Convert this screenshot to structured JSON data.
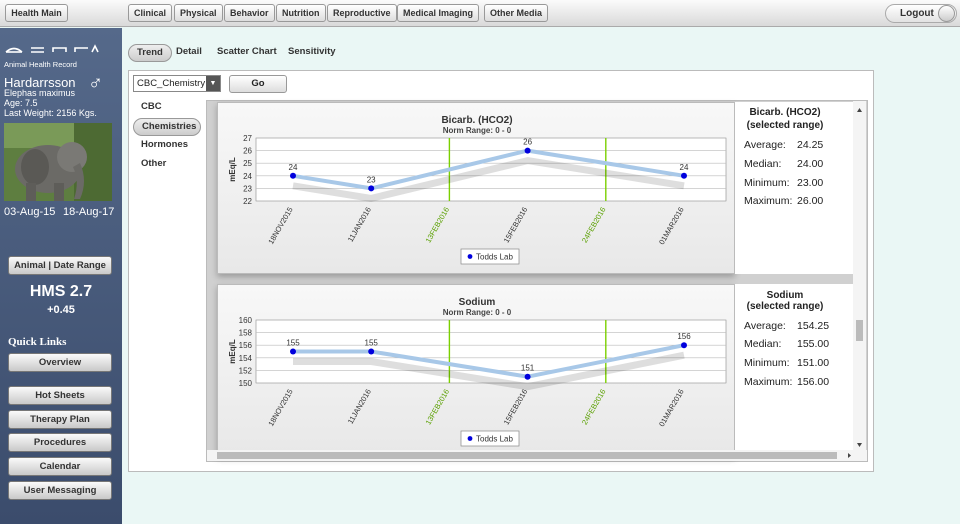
{
  "topnav": {
    "home": "Health Main",
    "items": [
      "Clinical",
      "Physical",
      "Behavior",
      "Nutrition",
      "Reproductive",
      "Medical Imaging",
      "Other Media"
    ],
    "logout": "Logout"
  },
  "sidebar": {
    "logo_sub": "Animal Health Record",
    "animal_name": "Hardarrsson",
    "sex_symbol": "♂",
    "species": "Elephas maximus",
    "age": "Age: 7.5",
    "weight": "Last Weight: 2156 Kgs.",
    "date_start": "03-Aug-15",
    "date_end": "18-Aug-17",
    "animal_date_btn": "Animal | Date Range",
    "hms": "HMS 2.7",
    "hms_delta": "+0.45",
    "quick_links": "Quick Links",
    "overview": "Overview",
    "buttons": [
      "Hot Sheets",
      "Therapy Plan",
      "Procedures",
      "Calendar",
      "User Messaging"
    ]
  },
  "tabs": [
    "Trend",
    "Detail",
    "Scatter Chart",
    "Sensitivity"
  ],
  "panel_select": "CBC_Chemistry",
  "go": "Go",
  "categories": [
    "CBC",
    "Chemistries",
    "Hormones",
    "Other"
  ],
  "colors": {
    "series": "#0000dd",
    "trend": "#a8c8e8",
    "marker": "#7bd000"
  },
  "charts": [
    {
      "title": "Bicarb. (HCO2)",
      "norm": "Norm Range: 0 - 0",
      "ylabel": "mEq/L",
      "legend": "Todds Lab",
      "stats_title1": "Bicarb. (HCO2)",
      "stats_title2": "(selected range)",
      "avg_label": "Average:",
      "avg": "24.25",
      "med_label": "Median:",
      "med": "24.00",
      "min_label": "Minimum:",
      "min": "23.00",
      "max_label": "Maximum:",
      "max": "26.00",
      "chart_data": {
        "type": "line",
        "ylim": [
          22,
          27
        ],
        "yticks": [
          27,
          26,
          25,
          24,
          23,
          22
        ],
        "x": [
          "18NOV2015",
          "11JAN2016",
          "13FEB2016",
          "15FEB2016",
          "24FEB2016",
          "01MAR2016"
        ],
        "highlight": [
          "13FEB2016",
          "24FEB2016"
        ],
        "series": [
          {
            "name": "Todds Lab",
            "points": [
              [
                "18NOV2015",
                24
              ],
              [
                "11JAN2016",
                23
              ],
              [
                "15FEB2016",
                26
              ],
              [
                "01MAR2016",
                24
              ]
            ]
          }
        ]
      }
    },
    {
      "title": "Sodium",
      "norm": "Norm Range: 0 - 0",
      "ylabel": "mEq/L",
      "legend": "Todds Lab",
      "stats_title1": "Sodium",
      "stats_title2": "(selected range)",
      "avg_label": "Average:",
      "avg": "154.25",
      "med_label": "Median:",
      "med": "155.00",
      "min_label": "Minimum:",
      "min": "151.00",
      "max_label": "Maximum:",
      "max": "156.00",
      "chart_data": {
        "type": "line",
        "ylim": [
          150,
          160
        ],
        "yticks": [
          160,
          158,
          156,
          154,
          152,
          150
        ],
        "x": [
          "18NOV2015",
          "11JAN2016",
          "13FEB2016",
          "15FEB2016",
          "24FEB2016",
          "01MAR2016"
        ],
        "highlight": [
          "13FEB2016",
          "24FEB2016"
        ],
        "series": [
          {
            "name": "Todds Lab",
            "points": [
              [
                "18NOV2015",
                155
              ],
              [
                "11JAN2016",
                155
              ],
              [
                "15FEB2016",
                151
              ],
              [
                "01MAR2016",
                156
              ]
            ]
          }
        ]
      }
    }
  ]
}
